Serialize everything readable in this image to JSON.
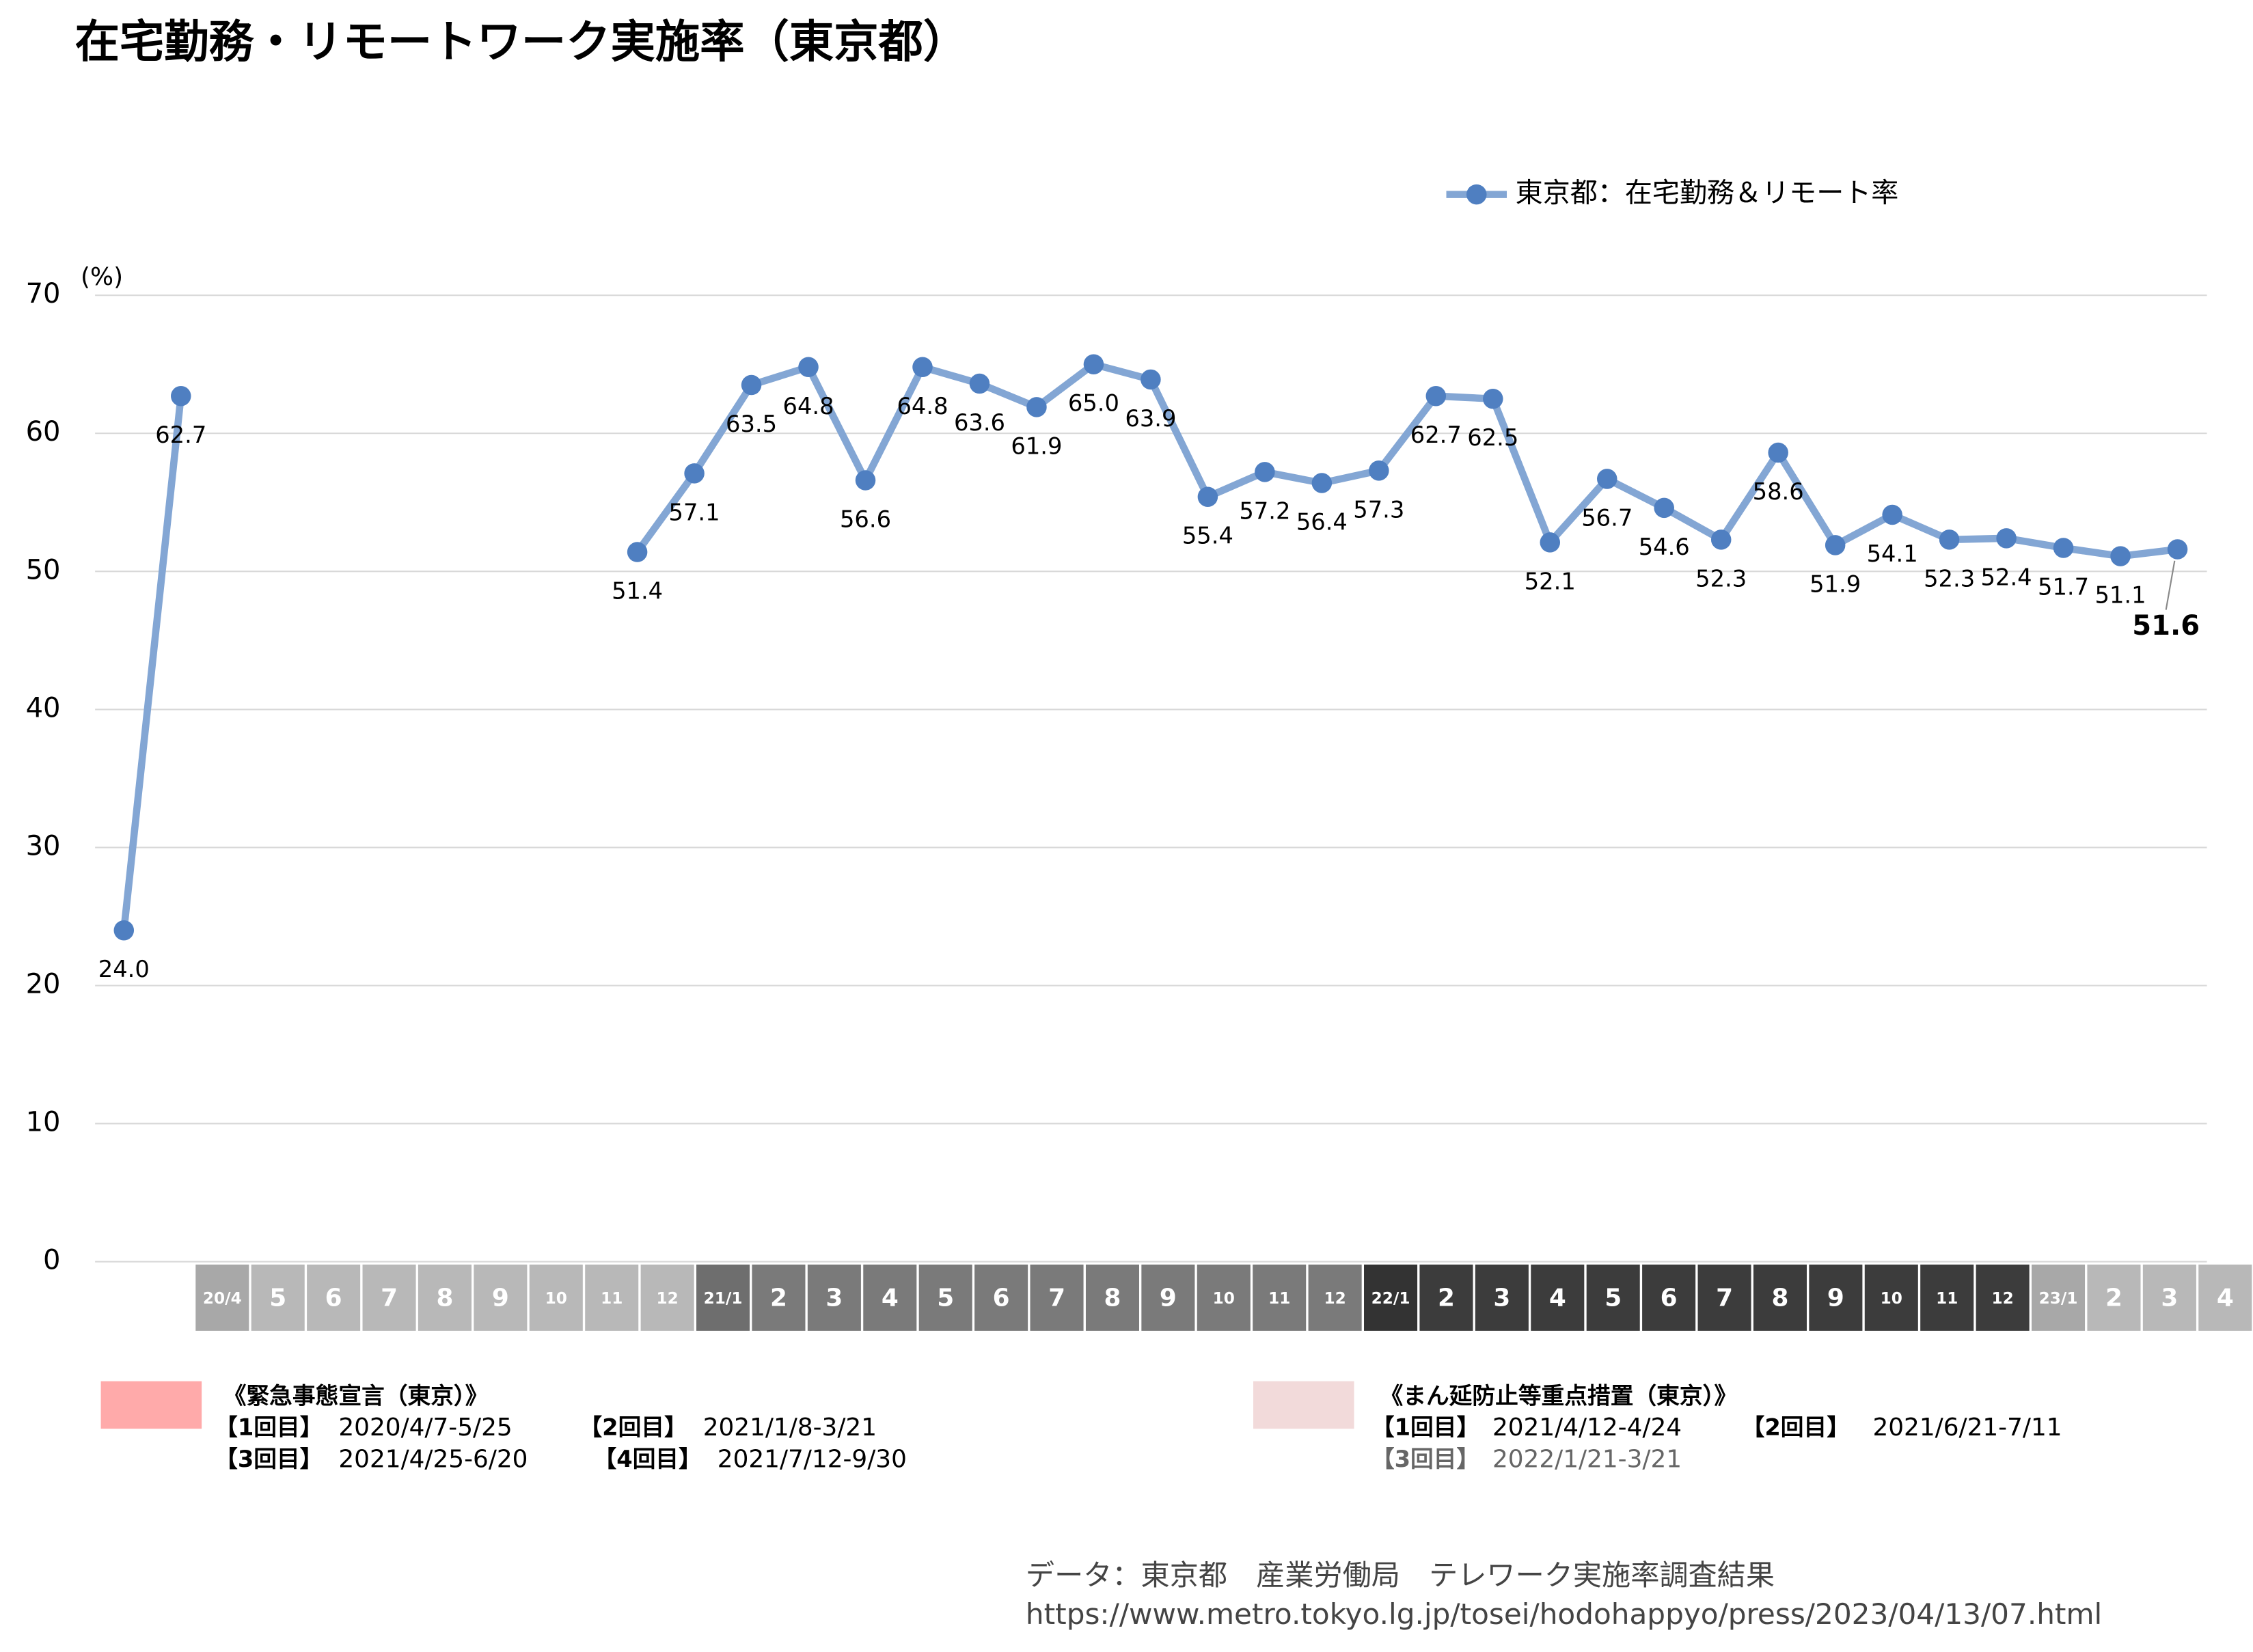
{
  "chart_data": {
    "type": "line",
    "title": "在宅勤務・リモートワーク実施率（東京都）",
    "y_unit": "(%)",
    "categories": [
      "20/4",
      "5",
      "6",
      "7",
      "8",
      "9",
      "10",
      "11",
      "12",
      "21/1",
      "2",
      "3",
      "4",
      "5",
      "6",
      "7",
      "8",
      "9",
      "10",
      "11",
      "12",
      "22/1",
      "2",
      "3",
      "4",
      "5",
      "6",
      "7",
      "8",
      "9",
      "10",
      "11",
      "12",
      "23/1",
      "2",
      "3",
      "4"
    ],
    "category_colors": [
      "#a8a8a8",
      "#b8b8b8",
      "#b8b8b8",
      "#b8b8b8",
      "#b8b8b8",
      "#b8b8b8",
      "#b8b8b8",
      "#b8b8b8",
      "#b8b8b8",
      "#6e6e6e",
      "#7a7a7a",
      "#7a7a7a",
      "#7a7a7a",
      "#7a7a7a",
      "#7a7a7a",
      "#7a7a7a",
      "#7a7a7a",
      "#7a7a7a",
      "#7a7a7a",
      "#7a7a7a",
      "#7a7a7a",
      "#333333",
      "#3c3c3c",
      "#3c3c3c",
      "#3c3c3c",
      "#3c3c3c",
      "#3c3c3c",
      "#3c3c3c",
      "#3c3c3c",
      "#3c3c3c",
      "#3c3c3c",
      "#3c3c3c",
      "#3c3c3c",
      "#a8a8a8",
      "#b8b8b8",
      "#b8b8b8",
      "#b8b8b8"
    ],
    "series": [
      {
        "name": "東京都：在宅勤務＆リモート率",
        "color": "#83a6d4",
        "marker_color": "#4f7fc1",
        "values": [
          24.0,
          62.7,
          null,
          null,
          null,
          null,
          null,
          null,
          null,
          51.4,
          57.1,
          63.5,
          64.8,
          56.6,
          64.8,
          63.6,
          61.9,
          65.0,
          63.9,
          55.4,
          57.2,
          56.4,
          57.3,
          62.7,
          62.5,
          52.1,
          56.7,
          54.6,
          52.3,
          58.6,
          51.9,
          54.1,
          52.3,
          52.4,
          51.7,
          51.1,
          51.6
        ],
        "value_labels": [
          "24.0",
          "62.7",
          null,
          null,
          null,
          null,
          null,
          null,
          null,
          "51.4",
          "57.1",
          "63.5",
          "64.8",
          "56.6",
          "64.8",
          "63.6",
          "61.9",
          "65.0",
          "63.9",
          "55.4",
          "57.2",
          "56.4",
          "57.3",
          "62.7",
          "62.5",
          "52.1",
          "56.7",
          "54.6",
          "52.3",
          "58.6",
          "51.9",
          "54.1",
          "52.3",
          "52.4",
          "51.7",
          "51.1",
          "51.6"
        ]
      }
    ],
    "ylim": [
      0,
      70
    ],
    "yticks": [
      0,
      10,
      20,
      30,
      40,
      50,
      60,
      70
    ],
    "grid": true,
    "legend": "top-right",
    "notes": [
      {
        "title": "《緊急事態宣言（東京）》",
        "color": "#ffaaaa",
        "items": [
          {
            "label": "【1回目】",
            "text": "2020/4/7-5/25"
          },
          {
            "label": "【2回目】",
            "text": "2021/1/8-3/21"
          },
          {
            "label": "【3回目】",
            "text": "2021/4/25-6/20"
          },
          {
            "label": "【4回目】",
            "text": "2021/7/12-9/30"
          }
        ]
      },
      {
        "title": "《まん延防止等重点措置（東京）》",
        "color": "#f2dada",
        "items": [
          {
            "label": "【1回目】",
            "text": "2021/4/12-4/24"
          },
          {
            "label": "【2回目】",
            "text": "2021/6/21-7/11"
          },
          {
            "label": "【3回目】",
            "text": "2022/1/21-3/21"
          }
        ]
      }
    ],
    "source": [
      "データ：東京都　産業労働局　テレワーク実施率調査結果",
      "https://www.metro.tokyo.lg.jp/tosei/hodohappyo/press/2023/04/13/07.html"
    ]
  }
}
